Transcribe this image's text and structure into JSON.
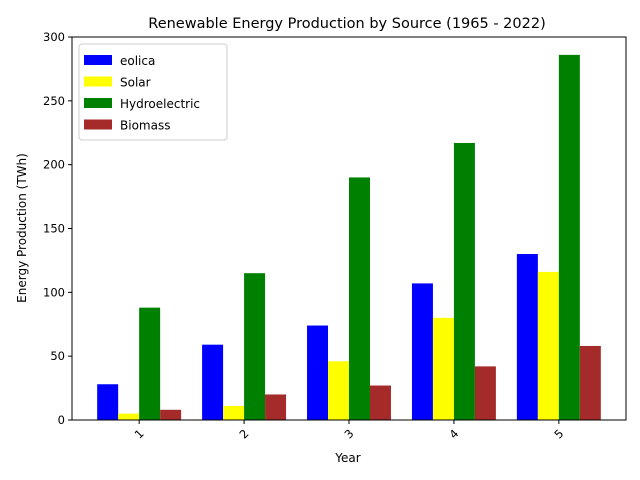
{
  "chart_data": {
    "type": "bar",
    "title": "Renewable Energy Production by Source (1965 - 2022)",
    "xlabel": "Year",
    "ylabel": "Energy Production (TWh)",
    "categories": [
      "1",
      "2",
      "3",
      "4",
      "5"
    ],
    "ylim": [
      0,
      300
    ],
    "yticks": [
      0,
      50,
      100,
      150,
      200,
      250,
      300
    ],
    "grid": false,
    "legend_position": "top-left",
    "series": [
      {
        "name": "eolica",
        "color": "#0000ff",
        "values": [
          28,
          59,
          74,
          107,
          130
        ]
      },
      {
        "name": "Solar",
        "color": "#ffff00",
        "values": [
          5,
          11,
          46,
          80,
          116
        ]
      },
      {
        "name": "Hydroelectric",
        "color": "#008000",
        "values": [
          88,
          115,
          190,
          217,
          286
        ]
      },
      {
        "name": "Biomass",
        "color": "#a52a2a",
        "values": [
          8,
          20,
          27,
          42,
          58
        ]
      }
    ]
  }
}
